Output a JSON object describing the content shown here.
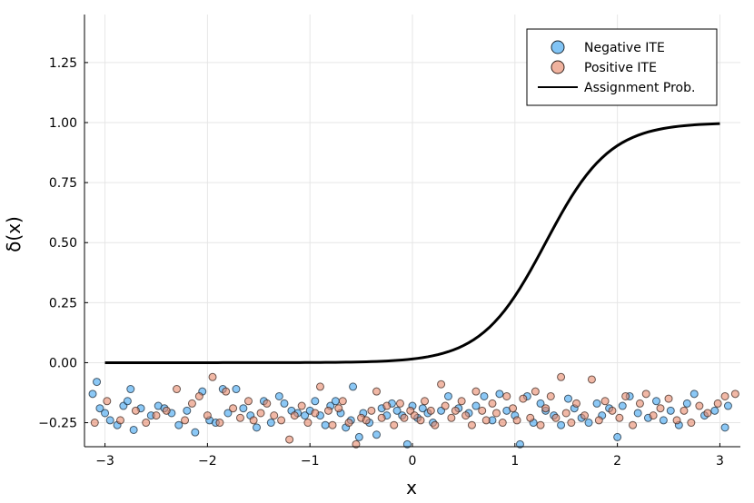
{
  "chart_data": {
    "type": "scatter",
    "title": "",
    "xlabel": "x",
    "ylabel": "δ(x)",
    "xlim": [
      -3.2,
      3.2
    ],
    "ylim": [
      -0.35,
      1.45
    ],
    "xticks": [
      -3,
      -2,
      -1,
      0,
      1,
      2,
      3
    ],
    "xtick_labels": [
      "−3",
      "−2",
      "−1",
      "0",
      "1",
      "2",
      "3"
    ],
    "yticks": [
      -0.25,
      0.0,
      0.25,
      0.5,
      0.75,
      1.0,
      1.25
    ],
    "ytick_labels": [
      "−0.25",
      "0.00",
      "0.25",
      "0.50",
      "0.75",
      "1.00",
      "1.25"
    ],
    "grid": true,
    "legend_position": "top-right",
    "colors": {
      "negative": "#3da4f0",
      "positive": "#e8896a",
      "line": "#000000",
      "grid": "#e6e6e6"
    },
    "series": [
      {
        "name": "Negative ITE",
        "kind": "scatter",
        "points": [
          [
            -3.12,
            -0.13
          ],
          [
            -3.08,
            -0.08
          ],
          [
            -3.05,
            -0.19
          ],
          [
            -3.0,
            -0.21
          ],
          [
            -2.95,
            -0.24
          ],
          [
            -2.88,
            -0.26
          ],
          [
            -2.82,
            -0.18
          ],
          [
            -2.78,
            -0.16
          ],
          [
            -2.75,
            -0.11
          ],
          [
            -2.72,
            -0.28
          ],
          [
            -2.65,
            -0.19
          ],
          [
            -2.55,
            -0.22
          ],
          [
            -2.48,
            -0.18
          ],
          [
            -2.42,
            -0.19
          ],
          [
            -2.35,
            -0.21
          ],
          [
            -2.28,
            -0.26
          ],
          [
            -2.2,
            -0.2
          ],
          [
            -2.12,
            -0.29
          ],
          [
            -2.05,
            -0.12
          ],
          [
            -1.98,
            -0.24
          ],
          [
            -1.92,
            -0.25
          ],
          [
            -1.85,
            -0.11
          ],
          [
            -1.8,
            -0.21
          ],
          [
            -1.72,
            -0.11
          ],
          [
            -1.65,
            -0.19
          ],
          [
            -1.58,
            -0.22
          ],
          [
            -1.52,
            -0.27
          ],
          [
            -1.45,
            -0.16
          ],
          [
            -1.38,
            -0.25
          ],
          [
            -1.3,
            -0.14
          ],
          [
            -1.25,
            -0.17
          ],
          [
            -1.18,
            -0.2
          ],
          [
            -1.12,
            -0.21
          ],
          [
            -1.05,
            -0.22
          ],
          [
            -1.0,
            -0.2
          ],
          [
            -0.95,
            -0.16
          ],
          [
            -0.9,
            -0.22
          ],
          [
            -0.85,
            -0.26
          ],
          [
            -0.8,
            -0.18
          ],
          [
            -0.75,
            -0.16
          ],
          [
            -0.7,
            -0.21
          ],
          [
            -0.65,
            -0.27
          ],
          [
            -0.6,
            -0.24
          ],
          [
            -0.58,
            -0.1
          ],
          [
            -0.52,
            -0.31
          ],
          [
            -0.48,
            -0.21
          ],
          [
            -0.42,
            -0.25
          ],
          [
            -0.35,
            -0.3
          ],
          [
            -0.3,
            -0.19
          ],
          [
            -0.25,
            -0.22
          ],
          [
            -0.2,
            -0.17
          ],
          [
            -0.15,
            -0.2
          ],
          [
            -0.1,
            -0.22
          ],
          [
            -0.05,
            -0.34
          ],
          [
            0.0,
            -0.18
          ],
          [
            0.05,
            -0.23
          ],
          [
            0.1,
            -0.19
          ],
          [
            0.15,
            -0.21
          ],
          [
            0.2,
            -0.25
          ],
          [
            0.28,
            -0.2
          ],
          [
            0.35,
            -0.14
          ],
          [
            0.45,
            -0.19
          ],
          [
            0.55,
            -0.21
          ],
          [
            0.62,
            -0.18
          ],
          [
            0.7,
            -0.14
          ],
          [
            0.78,
            -0.24
          ],
          [
            0.85,
            -0.13
          ],
          [
            0.92,
            -0.2
          ],
          [
            1.0,
            -0.22
          ],
          [
            1.05,
            -0.34
          ],
          [
            1.12,
            -0.14
          ],
          [
            1.18,
            -0.25
          ],
          [
            1.25,
            -0.17
          ],
          [
            1.3,
            -0.2
          ],
          [
            1.38,
            -0.22
          ],
          [
            1.45,
            -0.26
          ],
          [
            1.52,
            -0.15
          ],
          [
            1.58,
            -0.19
          ],
          [
            1.65,
            -0.23
          ],
          [
            1.72,
            -0.25
          ],
          [
            1.8,
            -0.17
          ],
          [
            1.85,
            -0.22
          ],
          [
            1.92,
            -0.19
          ],
          [
            2.0,
            -0.31
          ],
          [
            2.05,
            -0.18
          ],
          [
            2.12,
            -0.14
          ],
          [
            2.2,
            -0.21
          ],
          [
            2.3,
            -0.23
          ],
          [
            2.38,
            -0.16
          ],
          [
            2.45,
            -0.24
          ],
          [
            2.52,
            -0.2
          ],
          [
            2.6,
            -0.26
          ],
          [
            2.68,
            -0.17
          ],
          [
            2.75,
            -0.13
          ],
          [
            2.85,
            -0.22
          ],
          [
            2.95,
            -0.2
          ],
          [
            3.05,
            -0.27
          ],
          [
            3.08,
            -0.18
          ]
        ]
      },
      {
        "name": "Positive ITE",
        "kind": "scatter",
        "points": [
          [
            -3.1,
            -0.25
          ],
          [
            -2.98,
            -0.16
          ],
          [
            -2.85,
            -0.24
          ],
          [
            -2.7,
            -0.2
          ],
          [
            -2.6,
            -0.25
          ],
          [
            -2.5,
            -0.22
          ],
          [
            -2.4,
            -0.2
          ],
          [
            -2.3,
            -0.11
          ],
          [
            -2.22,
            -0.24
          ],
          [
            -2.15,
            -0.17
          ],
          [
            -2.08,
            -0.14
          ],
          [
            -2.0,
            -0.22
          ],
          [
            -1.95,
            -0.06
          ],
          [
            -1.88,
            -0.25
          ],
          [
            -1.82,
            -0.12
          ],
          [
            -1.75,
            -0.19
          ],
          [
            -1.68,
            -0.23
          ],
          [
            -1.6,
            -0.16
          ],
          [
            -1.55,
            -0.24
          ],
          [
            -1.48,
            -0.21
          ],
          [
            -1.42,
            -0.17
          ],
          [
            -1.35,
            -0.22
          ],
          [
            -1.28,
            -0.24
          ],
          [
            -1.2,
            -0.32
          ],
          [
            -1.15,
            -0.22
          ],
          [
            -1.08,
            -0.18
          ],
          [
            -1.02,
            -0.25
          ],
          [
            -0.95,
            -0.21
          ],
          [
            -0.9,
            -0.1
          ],
          [
            -0.82,
            -0.2
          ],
          [
            -0.78,
            -0.26
          ],
          [
            -0.72,
            -0.19
          ],
          [
            -0.68,
            -0.16
          ],
          [
            -0.62,
            -0.25
          ],
          [
            -0.55,
            -0.34
          ],
          [
            -0.5,
            -0.23
          ],
          [
            -0.45,
            -0.24
          ],
          [
            -0.4,
            -0.2
          ],
          [
            -0.35,
            -0.12
          ],
          [
            -0.3,
            -0.23
          ],
          [
            -0.25,
            -0.18
          ],
          [
            -0.18,
            -0.26
          ],
          [
            -0.12,
            -0.17
          ],
          [
            -0.08,
            -0.23
          ],
          [
            -0.02,
            -0.2
          ],
          [
            0.02,
            -0.22
          ],
          [
            0.08,
            -0.24
          ],
          [
            0.12,
            -0.16
          ],
          [
            0.18,
            -0.2
          ],
          [
            0.22,
            -0.26
          ],
          [
            0.28,
            -0.09
          ],
          [
            0.32,
            -0.18
          ],
          [
            0.38,
            -0.23
          ],
          [
            0.42,
            -0.2
          ],
          [
            0.48,
            -0.16
          ],
          [
            0.52,
            -0.22
          ],
          [
            0.58,
            -0.26
          ],
          [
            0.62,
            -0.12
          ],
          [
            0.68,
            -0.2
          ],
          [
            0.72,
            -0.24
          ],
          [
            0.78,
            -0.17
          ],
          [
            0.82,
            -0.21
          ],
          [
            0.88,
            -0.25
          ],
          [
            0.92,
            -0.14
          ],
          [
            0.98,
            -0.19
          ],
          [
            1.02,
            -0.24
          ],
          [
            1.08,
            -0.15
          ],
          [
            1.15,
            -0.23
          ],
          [
            1.2,
            -0.12
          ],
          [
            1.25,
            -0.26
          ],
          [
            1.3,
            -0.19
          ],
          [
            1.35,
            -0.14
          ],
          [
            1.4,
            -0.23
          ],
          [
            1.45,
            -0.06
          ],
          [
            1.5,
            -0.21
          ],
          [
            1.55,
            -0.25
          ],
          [
            1.6,
            -0.17
          ],
          [
            1.68,
            -0.22
          ],
          [
            1.75,
            -0.07
          ],
          [
            1.82,
            -0.24
          ],
          [
            1.88,
            -0.16
          ],
          [
            1.95,
            -0.2
          ],
          [
            2.02,
            -0.23
          ],
          [
            2.08,
            -0.14
          ],
          [
            2.15,
            -0.26
          ],
          [
            2.22,
            -0.17
          ],
          [
            2.28,
            -0.13
          ],
          [
            2.35,
            -0.22
          ],
          [
            2.42,
            -0.19
          ],
          [
            2.5,
            -0.15
          ],
          [
            2.58,
            -0.24
          ],
          [
            2.65,
            -0.2
          ],
          [
            2.72,
            -0.25
          ],
          [
            2.8,
            -0.18
          ],
          [
            2.88,
            -0.21
          ],
          [
            2.98,
            -0.17
          ],
          [
            3.05,
            -0.14
          ],
          [
            3.15,
            -0.13
          ]
        ]
      },
      {
        "name": "Assignment Prob.",
        "kind": "line",
        "function": "logistic",
        "x_range": [
          -3,
          3
        ],
        "midpoint": 1.3,
        "steepness": 3.2
      }
    ]
  }
}
